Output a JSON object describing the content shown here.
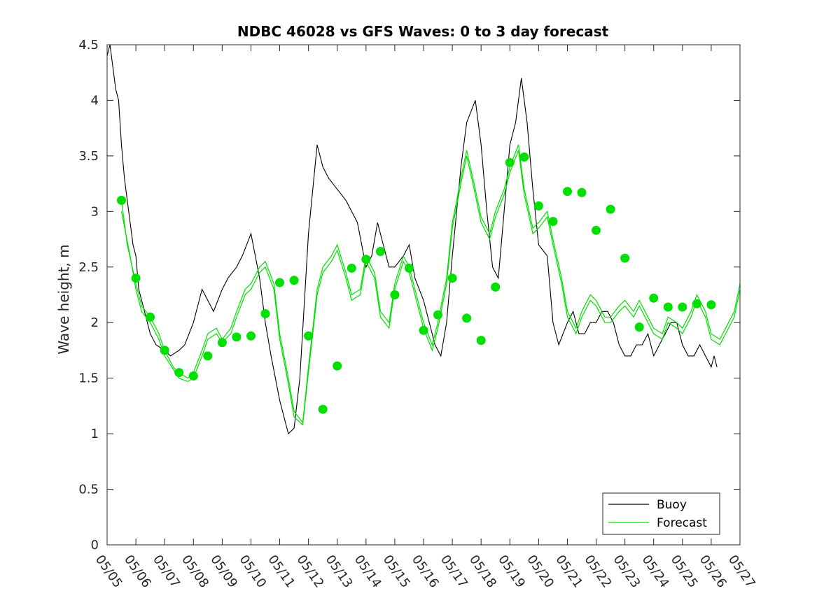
{
  "chart_data": {
    "type": "line",
    "title": "NDBC 46028 vs GFS Waves: 0 to 3 day forecast",
    "xlabel": "",
    "ylabel": "Wave height, m",
    "xlim": [
      0,
      22
    ],
    "ylim": [
      0,
      4.5
    ],
    "x_tick_labels": [
      "05/05",
      "05/06",
      "05/07",
      "05/08",
      "05/09",
      "05/10",
      "05/11",
      "05/12",
      "05/13",
      "05/14",
      "05/15",
      "05/16",
      "05/17",
      "05/18",
      "05/19",
      "05/20",
      "05/21",
      "05/22",
      "05/23",
      "05/24",
      "05/25",
      "05/26",
      "05/27"
    ],
    "y_ticks": [
      0,
      0.5,
      1,
      1.5,
      2,
      2.5,
      3,
      3.5,
      4,
      4.5
    ],
    "y_tick_labels": [
      "0",
      "0.5",
      "1",
      "1.5",
      "2",
      "2.5",
      "3",
      "3.5",
      "4",
      "4.5"
    ],
    "grid": false,
    "legend_position": "bottom-right",
    "colors": {
      "buoy": "#000000",
      "forecast": "#00e000",
      "axes": "#262626"
    },
    "series": [
      {
        "name": "Buoy",
        "x": [
          0,
          0.1,
          0.2,
          0.3,
          0.4,
          0.5,
          0.6,
          0.7,
          0.8,
          0.9,
          1.0,
          1.1,
          1.2,
          1.3,
          1.4,
          1.5,
          1.7,
          2.0,
          2.2,
          2.5,
          2.7,
          3.0,
          3.3,
          3.5,
          3.7,
          4.0,
          4.2,
          4.5,
          4.7,
          5.0,
          5.3,
          5.5,
          5.7,
          6.0,
          6.3,
          6.5,
          6.7,
          7.0,
          7.3,
          7.5,
          7.7,
          8.0,
          8.3,
          8.5,
          8.7,
          9.0,
          9.2,
          9.4,
          9.6,
          9.8,
          10.0,
          10.3,
          10.5,
          10.7,
          11.0,
          11.2,
          11.4,
          11.6,
          11.8,
          12.0,
          12.3,
          12.5,
          12.8,
          13.0,
          13.2,
          13.4,
          13.6,
          13.8,
          14.0,
          14.2,
          14.4,
          14.6,
          14.8,
          15.0,
          15.3,
          15.5,
          15.7,
          16.0,
          16.2,
          16.4,
          16.6,
          16.8,
          17.0,
          17.2,
          17.4,
          17.6,
          17.8,
          18.0,
          18.2,
          18.4,
          18.6,
          18.8,
          19.0,
          19.2,
          19.4,
          19.6,
          19.8,
          20.0,
          20.2,
          20.4,
          20.6,
          20.8,
          21.0,
          21.1,
          21.2
        ],
        "values": [
          4.4,
          4.5,
          4.3,
          4.1,
          4.0,
          3.6,
          3.3,
          3.1,
          2.9,
          2.7,
          2.6,
          2.3,
          2.2,
          2.1,
          2.0,
          1.9,
          1.8,
          1.75,
          1.7,
          1.75,
          1.8,
          2.0,
          2.3,
          2.2,
          2.1,
          2.3,
          2.4,
          2.5,
          2.6,
          2.8,
          2.4,
          2.0,
          1.7,
          1.3,
          1.0,
          1.05,
          1.5,
          2.8,
          3.6,
          3.4,
          3.3,
          3.2,
          3.1,
          3.0,
          2.9,
          2.5,
          2.6,
          2.9,
          2.7,
          2.5,
          2.5,
          2.6,
          2.7,
          2.4,
          2.2,
          2.0,
          1.8,
          1.7,
          2.0,
          2.6,
          3.4,
          3.8,
          4.0,
          3.6,
          3.0,
          2.5,
          2.4,
          3.0,
          3.6,
          3.8,
          4.2,
          3.8,
          3.2,
          2.7,
          2.6,
          2.0,
          1.8,
          2.0,
          2.1,
          1.9,
          1.9,
          2.0,
          2.0,
          2.1,
          2.1,
          2.0,
          1.8,
          1.7,
          1.7,
          1.8,
          1.8,
          1.9,
          1.7,
          1.8,
          1.9,
          2.0,
          2.0,
          1.8,
          1.7,
          1.7,
          1.8,
          1.7,
          1.6,
          1.7,
          1.6
        ]
      },
      {
        "name": "Forecast",
        "x": [
          0.5,
          0.7,
          1.0,
          1.2,
          1.5,
          1.8,
          2.0,
          2.3,
          2.5,
          2.8,
          3.0,
          3.3,
          3.5,
          3.8,
          4.0,
          4.3,
          4.5,
          4.8,
          5.0,
          5.3,
          5.5,
          5.8,
          6.0,
          6.3,
          6.5,
          6.8,
          7.0,
          7.3,
          7.5,
          7.8,
          8.0,
          8.3,
          8.5,
          8.8,
          9.0,
          9.3,
          9.5,
          9.8,
          10.0,
          10.3,
          10.5,
          10.8,
          11.0,
          11.3,
          11.5,
          11.8,
          12.0,
          12.3,
          12.5,
          12.8,
          13.0,
          13.3,
          13.5,
          13.8,
          14.0,
          14.3,
          14.5,
          14.8,
          15.0,
          15.3,
          15.5,
          15.8,
          16.0,
          16.3,
          16.5,
          16.8,
          17.0,
          17.3,
          17.5,
          17.8,
          18.0,
          18.3,
          18.5,
          18.8,
          19.0,
          19.3,
          19.5,
          19.8,
          20.0,
          20.3,
          20.5,
          20.8,
          21.0,
          21.3,
          21.5,
          21.8,
          22.0
        ],
        "values": [
          3.1,
          2.7,
          2.35,
          2.15,
          2.05,
          1.9,
          1.75,
          1.6,
          1.55,
          1.5,
          1.55,
          1.75,
          1.9,
          1.95,
          1.85,
          1.95,
          2.1,
          2.3,
          2.35,
          2.5,
          2.55,
          2.35,
          1.9,
          1.5,
          1.2,
          1.1,
          1.6,
          2.3,
          2.5,
          2.6,
          2.7,
          2.45,
          2.25,
          2.3,
          2.6,
          2.45,
          2.1,
          2.0,
          2.35,
          2.6,
          2.5,
          2.2,
          2.0,
          1.8,
          2.0,
          2.4,
          2.9,
          3.3,
          3.55,
          3.2,
          2.95,
          2.8,
          3.0,
          3.2,
          3.4,
          3.6,
          3.2,
          2.85,
          2.9,
          3.0,
          2.75,
          2.4,
          2.1,
          1.95,
          2.1,
          2.25,
          2.2,
          2.05,
          2.05,
          2.15,
          2.2,
          2.1,
          2.2,
          2.05,
          1.95,
          1.9,
          2.05,
          2.0,
          1.95,
          2.1,
          2.25,
          2.1,
          1.9,
          1.85,
          1.95,
          2.1,
          2.35
        ]
      },
      {
        "name": "",
        "x": [
          0.5,
          0.8,
          1.0,
          1.2,
          1.5,
          1.8,
          2.0,
          2.3,
          2.5,
          2.8,
          3.0,
          3.3,
          3.5,
          3.8,
          4.0,
          4.3,
          4.5,
          4.8,
          5.0,
          5.3,
          5.5,
          5.8,
          6.0,
          6.3,
          6.5,
          6.8,
          7.0,
          7.3,
          7.5,
          7.8,
          8.0,
          8.3,
          8.5,
          8.8,
          9.0,
          9.3,
          9.5,
          9.8,
          10.0,
          10.3,
          10.5,
          10.8,
          11.0,
          11.3,
          11.5,
          11.8,
          12.0,
          12.3,
          12.5,
          12.8,
          13.0,
          13.3,
          13.5,
          13.8,
          14.0,
          14.3,
          14.5,
          14.8,
          15.0,
          15.3,
          15.5,
          15.8,
          16.0,
          16.3,
          16.5,
          16.8,
          17.0,
          17.3,
          17.5,
          17.8,
          18.0,
          18.3,
          18.5,
          18.8,
          19.0,
          19.3,
          19.5,
          19.8,
          20.0,
          20.3,
          20.5,
          20.8,
          21.0,
          21.3,
          21.5,
          21.8,
          22.0
        ],
        "values": [
          3.0,
          2.6,
          2.3,
          2.1,
          2.0,
          1.85,
          1.7,
          1.58,
          1.5,
          1.47,
          1.5,
          1.7,
          1.85,
          1.9,
          1.82,
          1.9,
          2.05,
          2.25,
          2.3,
          2.45,
          2.5,
          2.3,
          1.85,
          1.45,
          1.15,
          1.08,
          1.55,
          2.25,
          2.45,
          2.55,
          2.65,
          2.4,
          2.2,
          2.25,
          2.55,
          2.4,
          2.05,
          1.95,
          2.3,
          2.55,
          2.45,
          2.15,
          1.95,
          1.75,
          1.95,
          2.35,
          2.85,
          3.25,
          3.5,
          3.15,
          2.9,
          2.75,
          2.95,
          3.15,
          3.35,
          3.55,
          3.15,
          2.8,
          2.85,
          2.95,
          2.7,
          2.35,
          2.05,
          1.9,
          2.05,
          2.2,
          2.15,
          2.0,
          2.0,
          2.1,
          2.15,
          2.05,
          2.15,
          2.0,
          1.9,
          1.85,
          2.0,
          1.95,
          1.9,
          2.05,
          2.2,
          2.05,
          1.85,
          1.8,
          1.9,
          2.05,
          2.3
        ]
      }
    ],
    "forecast_markers": {
      "x": [
        0.5,
        1.0,
        1.5,
        2.0,
        2.5,
        3.0,
        3.5,
        4.0,
        4.5,
        5.0,
        5.5,
        6.0,
        6.5,
        7.0,
        7.5,
        8.0,
        8.5,
        9.0,
        9.5,
        10.0,
        10.5,
        11.0,
        11.5,
        12.0,
        12.5,
        13.0,
        13.5,
        14.0,
        14.5,
        15.0,
        15.5,
        16.0,
        16.5,
        17.0,
        17.5,
        18.0,
        18.5,
        19.0,
        19.5,
        20.0,
        20.5,
        21.0
      ],
      "values": [
        3.1,
        2.4,
        2.05,
        1.75,
        1.55,
        1.52,
        1.7,
        1.82,
        1.87,
        1.88,
        2.08,
        2.36,
        2.38,
        1.88,
        1.22,
        1.61,
        2.49,
        2.57,
        2.64,
        2.25,
        2.49,
        1.93,
        2.07,
        2.4,
        2.04,
        1.84,
        2.32,
        3.44,
        3.49,
        3.05,
        2.91,
        3.18,
        3.17,
        2.83,
        3.02,
        2.58,
        1.96,
        2.22,
        2.14,
        2.14,
        2.17,
        2.16
      ]
    }
  },
  "legend": {
    "items": [
      {
        "label": "Buoy",
        "color": "#000000"
      },
      {
        "label": "Forecast",
        "color": "#00e000"
      }
    ]
  }
}
